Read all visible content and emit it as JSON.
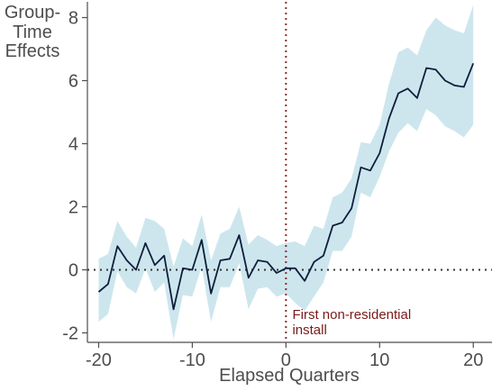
{
  "chart_data": {
    "type": "line",
    "title": "",
    "xlabel": "Elapsed Quarters",
    "ylabel_lines": [
      "Group-",
      "Time",
      "Effects"
    ],
    "xlim": [
      -21.2,
      22
    ],
    "ylim": [
      -2.3,
      8.5
    ],
    "xticks": [
      -20,
      -10,
      0,
      10,
      20
    ],
    "yticks": [
      -2,
      0,
      2,
      4,
      6,
      8
    ],
    "grid": false,
    "reference_lines": [
      {
        "orientation": "vertical",
        "value": 0,
        "style": "dotted",
        "color": "#8b2e2e"
      },
      {
        "orientation": "horizontal",
        "value": 0,
        "style": "dotted",
        "color": "#333333"
      }
    ],
    "annotation": {
      "lines": [
        "First non-residential",
        "install"
      ],
      "x": 0.3,
      "y": -1.55
    },
    "series": [
      {
        "kind": "estimate",
        "color": "#0f1e3c",
        "x": [
          -20,
          -19,
          -18,
          -17,
          -16,
          -15,
          -14,
          -13,
          -12,
          -11,
          -10,
          -9,
          -8,
          -7,
          -6,
          -5,
          -4,
          -3,
          -2,
          -1,
          0,
          1,
          2,
          3,
          4,
          5,
          6,
          7,
          8,
          9,
          10,
          11,
          12,
          13,
          14,
          15,
          16,
          17,
          18,
          19,
          20
        ],
        "y": [
          -0.7,
          -0.45,
          0.75,
          0.3,
          0.0,
          0.85,
          0.15,
          0.45,
          -1.25,
          0.05,
          0.0,
          0.95,
          -0.75,
          0.3,
          0.35,
          1.1,
          -0.25,
          0.3,
          0.25,
          -0.1,
          0.05,
          0.05,
          -0.35,
          0.25,
          0.45,
          1.4,
          1.5,
          1.95,
          3.25,
          3.15,
          3.7,
          4.8,
          5.6,
          5.75,
          5.45,
          6.4,
          6.35,
          6.0,
          5.85,
          5.8,
          6.55
        ]
      },
      {
        "kind": "confidence_band",
        "color": "#cde6ee",
        "x": [
          -20,
          -19,
          -18,
          -17,
          -16,
          -15,
          -14,
          -13,
          -12,
          -11,
          -10,
          -9,
          -8,
          -7,
          -6,
          -5,
          -4,
          -3,
          -2,
          -1,
          0,
          1,
          2,
          3,
          4,
          5,
          6,
          7,
          8,
          9,
          10,
          11,
          12,
          13,
          14,
          15,
          16,
          17,
          18,
          19,
          20
        ],
        "upper": [
          0.35,
          0.5,
          1.55,
          1.05,
          0.7,
          1.65,
          1.55,
          1.3,
          0.1,
          1.0,
          0.75,
          1.75,
          0.3,
          1.15,
          1.3,
          2.0,
          0.8,
          1.1,
          0.95,
          0.75,
          0.85,
          0.9,
          0.75,
          1.4,
          1.3,
          2.3,
          2.45,
          2.9,
          4.05,
          4.0,
          4.6,
          5.9,
          6.9,
          7.05,
          6.8,
          7.6,
          8.0,
          7.75,
          7.6,
          7.5,
          8.4
        ],
        "lower": [
          -1.65,
          -1.4,
          -0.05,
          -0.55,
          -0.75,
          0.05,
          -0.7,
          -0.4,
          -2.2,
          -0.8,
          -0.85,
          0.1,
          -1.65,
          -0.55,
          -0.55,
          0.2,
          -1.25,
          -0.6,
          -0.55,
          -0.85,
          -0.75,
          -1.05,
          -1.3,
          -0.85,
          -0.4,
          0.6,
          0.6,
          1.05,
          2.45,
          2.3,
          2.95,
          3.75,
          4.35,
          4.65,
          4.4,
          5.1,
          4.9,
          4.55,
          4.4,
          4.2,
          4.6
        ]
      }
    ]
  }
}
